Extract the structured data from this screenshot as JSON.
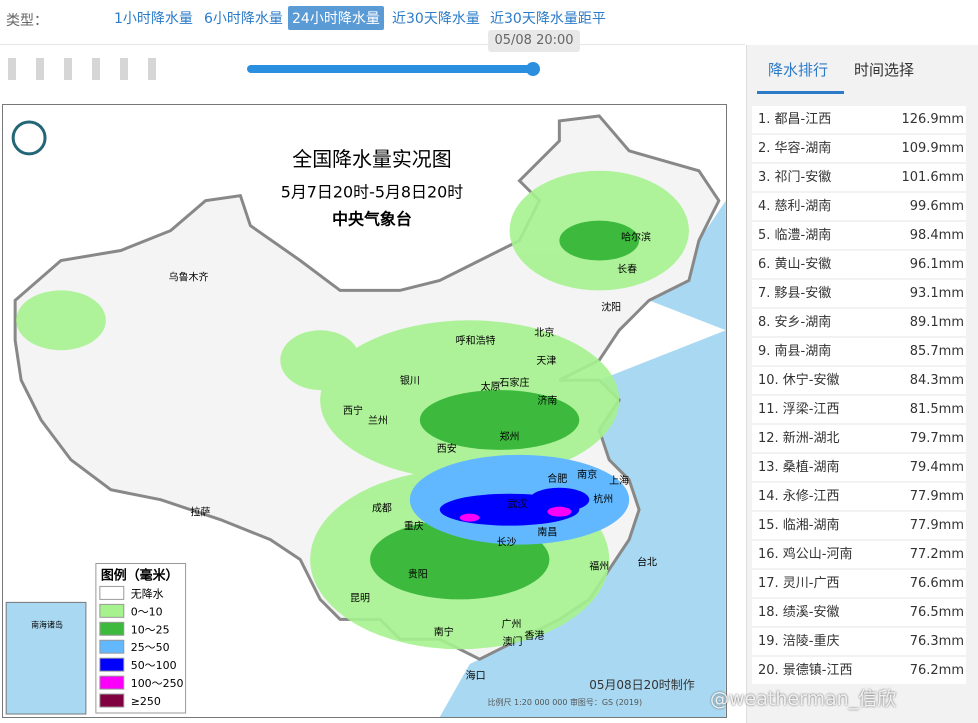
{
  "toolbar": {
    "label": "类型：",
    "tabs": [
      "1小时降水量",
      "6小时降水量",
      "24小时降水量",
      "近30天降水量",
      "近30天降水量距平"
    ],
    "time": "05/08 20:00"
  },
  "map": {
    "title": "全国降水量实况图",
    "period": "5月7日20时-5月8日20时",
    "agency": "中央气象台",
    "legend_title": "图例（毫米）",
    "legend": [
      "无降水",
      "0～10",
      "10～25",
      "25～50",
      "50～100",
      "100～250",
      "≥250"
    ],
    "made": "05月08日20时制作",
    "scale": "比例尺 1:20 000 000   审图号：GS (2019)",
    "inset": "南海诸岛",
    "cities": [
      "乌鲁木齐",
      "哈尔滨",
      "长春",
      "沈阳",
      "北京",
      "呼和浩特",
      "天津",
      "银川",
      "石家庄",
      "太原",
      "济南",
      "西宁",
      "兰州",
      "郑州",
      "西安",
      "合肥",
      "南京",
      "上海",
      "成都",
      "武汉",
      "杭州",
      "重庆",
      "长沙",
      "南昌",
      "拉萨",
      "贵阳",
      "福州",
      "台北",
      "昆明",
      "南宁",
      "广州",
      "香港",
      "澳门",
      "海口"
    ]
  },
  "ranking": {
    "tabs": [
      "降水排行",
      "时间选择"
    ],
    "rows": [
      [
        "1. 都昌-江西",
        "126.9mm"
      ],
      [
        "2. 华容-湖南",
        "109.9mm"
      ],
      [
        "3. 祁门-安徽",
        "101.6mm"
      ],
      [
        "4. 慈利-湖南",
        "99.6mm"
      ],
      [
        "5. 临澧-湖南",
        "98.4mm"
      ],
      [
        "6. 黄山-安徽",
        "96.1mm"
      ],
      [
        "7. 黟县-安徽",
        "93.1mm"
      ],
      [
        "8. 安乡-湖南",
        "89.1mm"
      ],
      [
        "9. 南县-湖南",
        "85.7mm"
      ],
      [
        "10. 休宁-安徽",
        "84.3mm"
      ],
      [
        "11. 浮梁-江西",
        "81.5mm"
      ],
      [
        "12. 新洲-湖北",
        "79.7mm"
      ],
      [
        "13. 桑植-湖南",
        "79.4mm"
      ],
      [
        "14. 永修-江西",
        "77.9mm"
      ],
      [
        "15. 临湘-湖南",
        "77.9mm"
      ],
      [
        "16. 鸡公山-河南",
        "77.2mm"
      ],
      [
        "17. 灵川-广西",
        "76.6mm"
      ],
      [
        "18. 绩溪-安徽",
        "76.5mm"
      ],
      [
        "19. 涪陵-重庆",
        "76.3mm"
      ],
      [
        "20. 景德镇-江西",
        "76.2mm"
      ]
    ]
  },
  "watermark": "@weatherman_信欣"
}
